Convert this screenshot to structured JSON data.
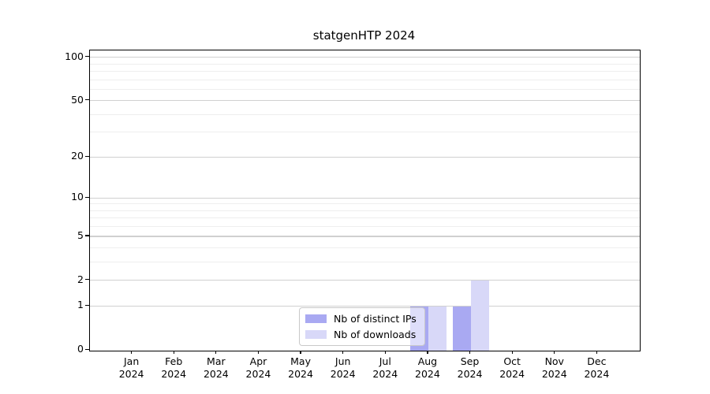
{
  "figure": {
    "background": "#ffffff"
  },
  "chart_data": {
    "type": "bar",
    "title": "statgenHTP 2024",
    "categories": [
      "Jan 2024",
      "Feb 2024",
      "Mar 2024",
      "Apr 2024",
      "May 2024",
      "Jun 2024",
      "Jul 2024",
      "Aug 2024",
      "Sep 2024",
      "Oct 2024",
      "Nov 2024",
      "Dec 2024"
    ],
    "series": [
      {
        "name": "Nb of distinct IPs",
        "color": "#a9a9f2",
        "values": [
          0,
          0,
          0,
          0,
          0,
          0,
          0,
          1,
          1,
          0,
          0,
          0
        ]
      },
      {
        "name": "Nb of downloads",
        "color": "#d8d8f8",
        "values": [
          0,
          0,
          0,
          0,
          0,
          0,
          0,
          1,
          2,
          0,
          0,
          0
        ]
      }
    ],
    "xlabel": "",
    "ylabel": "",
    "yscale": "log1p",
    "ylim": [
      0,
      112
    ],
    "y_major_ticks": [
      0,
      1,
      2,
      5,
      10,
      20,
      50,
      100
    ],
    "y_minor_ticks": [
      3,
      4,
      6,
      7,
      8,
      9,
      30,
      40,
      60,
      70,
      80,
      90
    ],
    "grid": "horizontal, major and minor",
    "legend_position": "lower center"
  },
  "legend": {
    "items": [
      {
        "label": "Nb of distinct IPs",
        "swatch_color": "#a9a9f2"
      },
      {
        "label": "Nb of downloads",
        "swatch_color": "#d8d8f8"
      }
    ]
  },
  "colors": {
    "bar_distinct_ips": "#a9a9f2",
    "bar_downloads": "#d8d8f8",
    "grid_major": "#d0d0d0",
    "grid_minor": "#eeeeee",
    "axis": "#000000",
    "text": "#000000",
    "legend_border": "#c9c9c9"
  }
}
